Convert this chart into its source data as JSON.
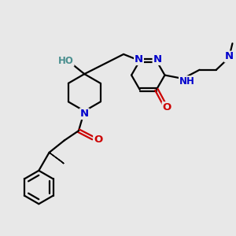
{
  "background_color": "#e8e8e8",
  "atom_colors": {
    "N": "#0000cc",
    "O": "#cc0000",
    "H": "#4a8f8f"
  },
  "bond_color": "#000000",
  "bond_width": 1.6,
  "figsize": [
    3.0,
    3.0
  ],
  "dpi": 100
}
